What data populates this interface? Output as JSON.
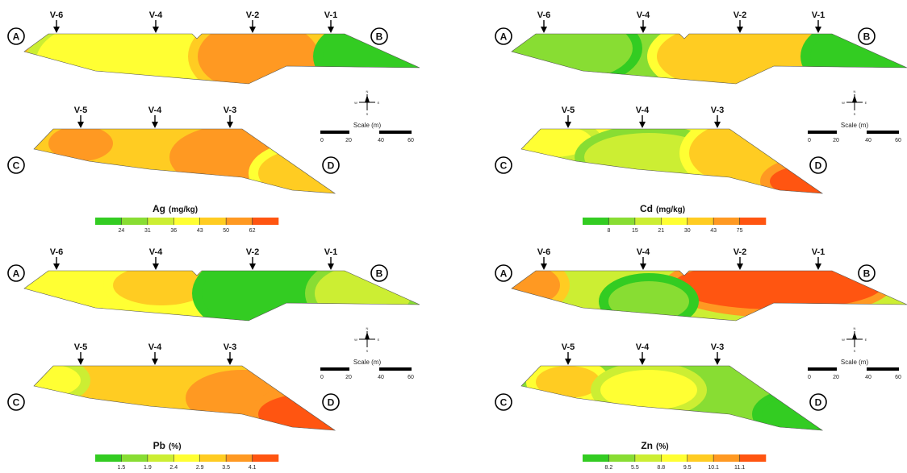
{
  "wells_row1": [
    "V-6",
    "V-4",
    "V-2",
    "V-1"
  ],
  "wells_row2": [
    "V-5",
    "V-4",
    "V-3"
  ],
  "section_points": {
    "top_left": "A",
    "top_right": "B",
    "bottom_left": "C",
    "bottom_right": "D"
  },
  "compass": {
    "n": "N",
    "s": "S",
    "e": "E",
    "w": "W"
  },
  "scale": {
    "title": "Scale (m)",
    "ticks": [
      "0",
      "20",
      "40",
      "60"
    ]
  },
  "colors": [
    "#33cc22",
    "#88dd33",
    "#ccee33",
    "#ffff33",
    "#ffcc22",
    "#ff9922",
    "#ff5511"
  ],
  "panels": [
    {
      "element": "Ag",
      "unit": "(mg/kg)",
      "ticks": [
        "24",
        "31",
        "36",
        "43",
        "50",
        "62"
      ]
    },
    {
      "element": "Cd",
      "unit": "(mg/kg)",
      "ticks": [
        "8",
        "15",
        "21",
        "30",
        "43",
        "75"
      ]
    },
    {
      "element": "Pb",
      "unit": "(%)",
      "ticks": [
        "1.5",
        "1.9",
        "2.4",
        "2.9",
        "3.5",
        "4.1"
      ]
    },
    {
      "element": "Zn",
      "unit": "(%)",
      "ticks": [
        "8.2",
        "5.5",
        "8.8",
        "9.5",
        "10.1",
        "11.1"
      ]
    }
  ]
}
